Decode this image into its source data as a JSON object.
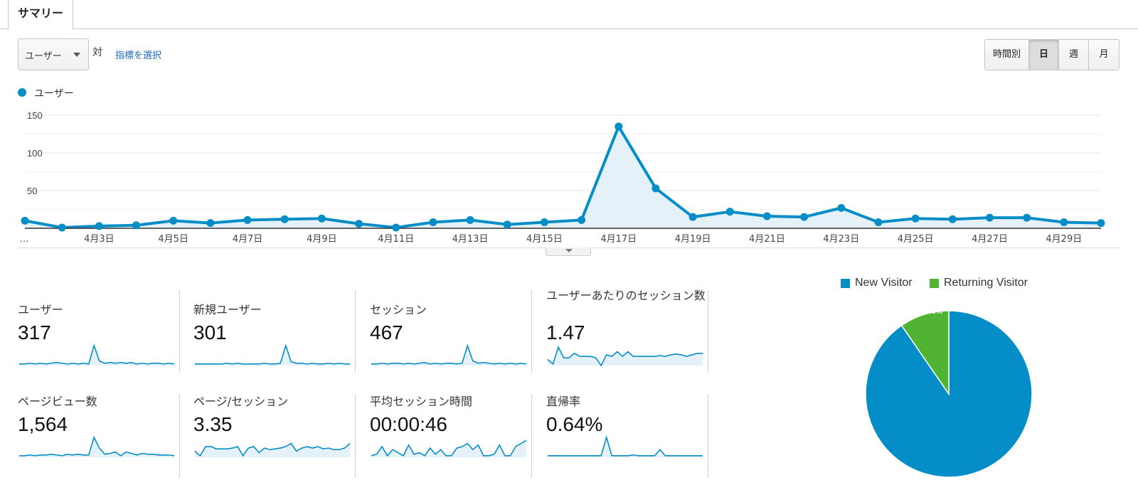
{
  "tab": {
    "label": "サマリー"
  },
  "toolbar": {
    "metric_select": "ユーザー",
    "vs_label": "対",
    "pick_metric_label": "指標を選択",
    "periods": [
      {
        "label": "時間別",
        "active": false
      },
      {
        "label": "日",
        "active": true
      },
      {
        "label": "週",
        "active": false
      },
      {
        "label": "月",
        "active": false
      }
    ]
  },
  "chart_data": [
    {
      "type": "line",
      "series": [
        {
          "name": "ユーザー",
          "color": "#058dc7",
          "values": [
            10,
            1,
            3,
            4,
            10,
            7,
            11,
            12,
            13,
            6,
            1,
            8,
            11,
            5,
            8,
            11,
            135,
            53,
            15,
            22,
            16,
            15,
            27,
            8,
            13,
            12,
            14,
            14,
            8,
            7
          ]
        }
      ],
      "x": [
        "4月1日",
        "4月2日",
        "4月3日",
        "4月4日",
        "4月5日",
        "4月6日",
        "4月7日",
        "4月8日",
        "4月9日",
        "4月10日",
        "4月11日",
        "4月12日",
        "4月13日",
        "4月14日",
        "4月15日",
        "4月16日",
        "4月17日",
        "4月18日",
        "4月19日",
        "4月20日",
        "4月21日",
        "4月22日",
        "4月23日",
        "4月24日",
        "4月25日",
        "4月26日",
        "4月27日",
        "4月28日",
        "4月29日",
        "4月30日"
      ],
      "x_tick_labels": [
        "…",
        "4月3日",
        "4月5日",
        "4月7日",
        "4月9日",
        "4月11日",
        "4月13日",
        "4月15日",
        "4月17日",
        "4月19日",
        "4月21日",
        "4月23日",
        "4月25日",
        "4月27日",
        "4月29日"
      ],
      "y_ticks": [
        50,
        100,
        150
      ],
      "ylim": [
        0,
        150
      ],
      "grid": true,
      "legend": "top-left"
    },
    {
      "type": "pie",
      "slices": [
        {
          "label": "New Visitor",
          "value": 90.4,
          "display": "90.4%",
          "color": "#058dc7"
        },
        {
          "label": "Returning Visitor",
          "value": 9.6,
          "display": "9.6%",
          "color": "#50b432"
        }
      ],
      "legend": "top"
    }
  ],
  "scorecards": [
    {
      "name": "ユーザー",
      "value": "317",
      "trend": [
        2,
        2,
        3,
        2,
        3,
        2,
        3,
        4,
        3,
        2,
        3,
        2,
        3,
        2,
        26,
        6,
        3,
        4,
        3,
        4,
        3,
        4,
        2,
        3,
        2,
        3,
        3,
        2,
        3,
        2
      ]
    },
    {
      "name": "新規ユーザー",
      "value": "301",
      "trend": [
        2,
        2,
        2,
        2,
        2,
        2,
        3,
        2,
        3,
        2,
        2,
        2,
        2,
        3,
        2,
        2,
        3,
        26,
        5,
        3,
        3,
        2,
        3,
        2,
        2,
        3,
        2,
        3,
        2,
        2
      ]
    },
    {
      "name": "セッション",
      "value": "467",
      "trend": [
        2,
        2,
        3,
        2,
        3,
        3,
        2,
        3,
        2,
        3,
        4,
        2,
        3,
        2,
        3,
        3,
        2,
        3,
        26,
        6,
        3,
        4,
        3,
        2,
        3,
        2,
        3,
        2,
        3,
        2
      ]
    },
    {
      "name": "ユーザーあたりのセッション数",
      "value": "1.47",
      "trend": [
        8,
        2,
        24,
        10,
        10,
        16,
        12,
        12,
        12,
        10,
        0,
        14,
        12,
        18,
        12,
        18,
        12,
        12,
        12,
        12,
        12,
        13,
        12,
        14,
        15,
        14,
        12,
        14,
        16,
        16
      ]
    },
    {
      "name": "ページビュー数",
      "value": "1,564",
      "trend": [
        2,
        2,
        3,
        2,
        3,
        3,
        4,
        3,
        2,
        4,
        3,
        4,
        3,
        3,
        26,
        12,
        4,
        5,
        7,
        2,
        7,
        5,
        3,
        5,
        4,
        4,
        3,
        3,
        3,
        2
      ]
    },
    {
      "name": "ページ/セッション",
      "value": "3.35",
      "trend": [
        8,
        2,
        14,
        14,
        11,
        11,
        11,
        12,
        14,
        2,
        12,
        14,
        6,
        12,
        10,
        11,
        12,
        14,
        18,
        8,
        12,
        14,
        12,
        14,
        11,
        12,
        10,
        10,
        12,
        18
      ]
    },
    {
      "name": "平均セッション時間",
      "value": "00:00:46",
      "trend": [
        2,
        4,
        14,
        2,
        10,
        6,
        2,
        16,
        4,
        6,
        2,
        12,
        4,
        10,
        2,
        2,
        12,
        14,
        18,
        10,
        16,
        2,
        2,
        4,
        16,
        2,
        2,
        14,
        18,
        22
      ]
    },
    {
      "name": "直帰率",
      "value": "0.64%",
      "trend": [
        2,
        2,
        2,
        2,
        2,
        2,
        2,
        2,
        2,
        2,
        2,
        26,
        2,
        2,
        2,
        2,
        3,
        2,
        2,
        2,
        2,
        10,
        2,
        2,
        2,
        2,
        2,
        2,
        2,
        2
      ]
    }
  ]
}
